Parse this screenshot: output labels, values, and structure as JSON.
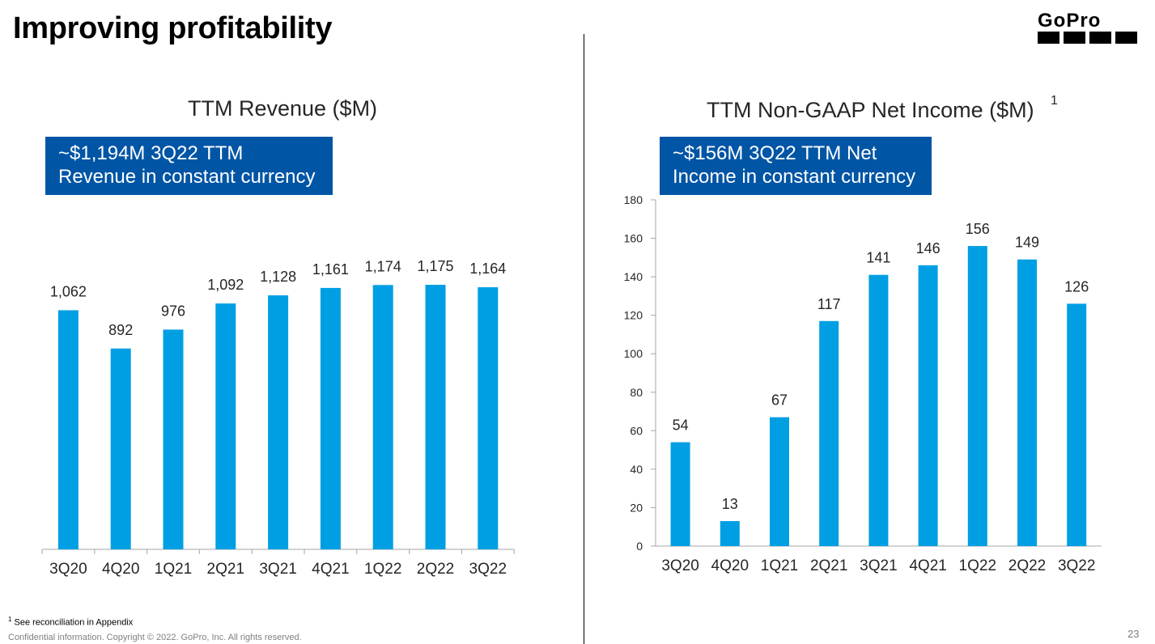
{
  "slide": {
    "title": "Improving profitability",
    "footnote_marker": "1",
    "footnote_text": "See reconciliation in Appendix",
    "copyright": "Confidential information. Copyright © 2022. GoPro, Inc. All rights reserved.",
    "page_number": "23",
    "logo_text": "GoPro",
    "colors": {
      "bar": "#009fe3",
      "callout_bg": "#0055a5",
      "text": "#262626"
    }
  },
  "revenue": {
    "title": "TTM Revenue ($M)",
    "callout": [
      "~$1,194M 3Q22 TTM",
      "Revenue in constant currency"
    ]
  },
  "income": {
    "title": "TTM Non-GAAP Net Income ($M)",
    "title_sup": "1",
    "callout": [
      "~$156M 3Q22 TTM Net",
      "Income in constant currency"
    ]
  },
  "chart_data": [
    {
      "type": "bar",
      "title": "TTM Revenue ($M)",
      "categories": [
        "3Q20",
        "4Q20",
        "1Q21",
        "2Q21",
        "3Q21",
        "4Q21",
        "1Q22",
        "2Q22",
        "3Q22"
      ],
      "values": [
        1062,
        892,
        976,
        1092,
        1128,
        1161,
        1174,
        1175,
        1164
      ],
      "value_labels": [
        "1,062",
        "892",
        "976",
        "1,092",
        "1,128",
        "1,161",
        "1,174",
        "1,175",
        "1,164"
      ],
      "y_axis_visible": false,
      "grid": false,
      "legend": "none"
    },
    {
      "type": "bar",
      "title": "TTM Non-GAAP Net Income ($M)",
      "categories": [
        "3Q20",
        "4Q20",
        "1Q21",
        "2Q21",
        "3Q21",
        "4Q21",
        "1Q22",
        "2Q22",
        "3Q22"
      ],
      "values": [
        54,
        13,
        67,
        117,
        141,
        146,
        156,
        149,
        126
      ],
      "ylim": [
        0,
        180
      ],
      "yticks": [
        0,
        20,
        40,
        60,
        80,
        100,
        120,
        140,
        160,
        180
      ],
      "y_axis_visible": true,
      "grid": false,
      "legend": "none"
    }
  ]
}
